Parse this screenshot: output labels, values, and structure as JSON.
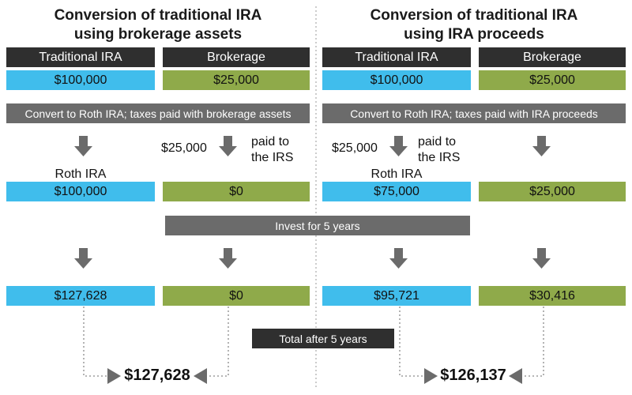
{
  "left": {
    "title_line1": "Conversion of traditional IRA",
    "title_line2": "using brokerage assets",
    "header_ira": "Traditional IRA",
    "header_brokerage": "Brokerage",
    "ira_start": "$100,000",
    "brokerage_start": "$25,000",
    "convert_text": "Convert to Roth IRA; taxes paid with brokerage assets",
    "tax_amount": "$25,000",
    "paid_line1": "paid to",
    "paid_line2": "the IRS",
    "roth_label": "Roth IRA",
    "roth_after": "$100,000",
    "brokerage_after": "$0",
    "roth_5yr": "$127,628",
    "brokerage_5yr": "$0",
    "total": "$127,628"
  },
  "right": {
    "title_line1": "Conversion of traditional IRA",
    "title_line2": "using IRA proceeds",
    "header_ira": "Traditional IRA",
    "header_brokerage": "Brokerage",
    "ira_start": "$100,000",
    "brokerage_start": "$25,000",
    "convert_text": "Convert to Roth IRA; taxes paid with IRA proceeds",
    "tax_amount": "$25,000",
    "paid_line1": "paid to",
    "paid_line2": "the IRS",
    "roth_label": "Roth IRA",
    "roth_after": "$75,000",
    "brokerage_after": "$25,000",
    "roth_5yr": "$95,721",
    "brokerage_5yr": "$30,416",
    "total": "$126,137"
  },
  "invest_text": "Invest for 5 years",
  "total_text": "Total after 5 years",
  "colors": {
    "ira_blue": "#40bdec",
    "brokerage_green": "#8faa4a",
    "header_dark": "#2f2f2f",
    "bar_gray": "#6b6b6b",
    "arrow_gray": "#6b6b6b"
  }
}
